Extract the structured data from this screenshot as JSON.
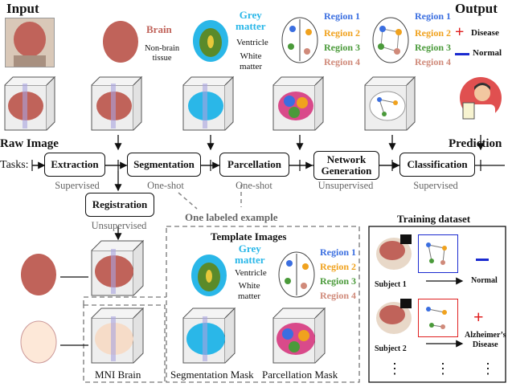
{
  "header": {
    "input": "Input",
    "output": "Output",
    "raw_image": "Raw Image",
    "prediction": "Prediction",
    "tasks": "Tasks:"
  },
  "annotations": {
    "brain": "Brain",
    "non_brain": "Non-brain\ntissue",
    "grey_matter": "Grey\nmatter",
    "ventricle": "Ventricle",
    "white_matter": "White\nmatter"
  },
  "regions": [
    "Region 1",
    "Region 2",
    "Region 3",
    "Region 4"
  ],
  "legend": {
    "disease": "Disease",
    "normal": "Normal"
  },
  "pipeline": [
    {
      "label": "Extraction",
      "supervision": "Supervised"
    },
    {
      "label": "Segmentation",
      "supervision": "One-shot"
    },
    {
      "label": "Parcellation",
      "supervision": "One-shot"
    },
    {
      "label": "Network Generation",
      "supervision": "Unsupervised"
    },
    {
      "label": "Classification",
      "supervision": "Supervised"
    }
  ],
  "registration": {
    "label": "Registration",
    "supervision": "Unsupervised"
  },
  "one_labeled_example": "One labeled example",
  "template": {
    "title": "Template Images",
    "grey_matter": "Grey\nmatter",
    "ventricle": "Ventricle",
    "white_matter": "White\nmatter",
    "regions": [
      "Region 1",
      "Region 2",
      "Region 3",
      "Region 4"
    ],
    "mni": "MNI Brain",
    "seg_mask": "Segmentation Mask",
    "parc_mask": "Parcellation Mask"
  },
  "training": {
    "title": "Training dataset",
    "subject1": "Subject 1",
    "subject2": "Subject 2",
    "normal": "Normal",
    "alzheimers": "Alzheimer’s\nDisease",
    "dots": "⋮"
  },
  "colors": {
    "brain": "#c0635a",
    "grey": "#2ab7e8",
    "white": "#5a8a2a",
    "ventricle": "#e8c83a",
    "region1": "#3a6ee0",
    "region2": "#f0a21e",
    "region3": "#4a9a3a",
    "region4": "#d08a7a",
    "red": "#e02020",
    "blue": "#1a2ad0"
  }
}
